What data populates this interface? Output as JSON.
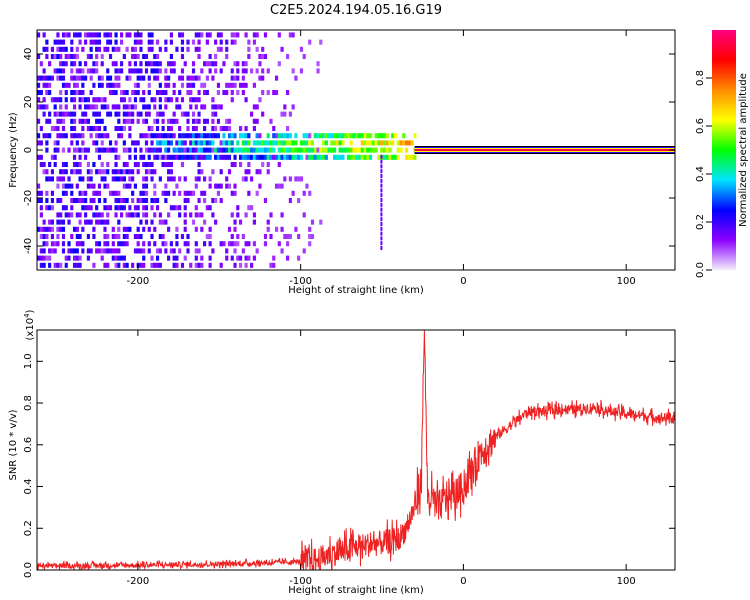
{
  "title": "C2E5.2024.194.05.16.G19",
  "chart_data": [
    {
      "type": "heatmap",
      "name": "spectrogram",
      "xlabel": "Height of straight line (km)",
      "ylabel": "Frequency (Hz)",
      "xlim": [
        -262,
        130
      ],
      "ylim": [
        -50,
        50
      ],
      "x_ticks": [
        -200,
        -100,
        0,
        100
      ],
      "y_ticks": [
        -40,
        -20,
        0,
        20,
        40
      ],
      "colorbar": {
        "label": "Normalized spectral amplitude",
        "range": [
          0,
          1
        ],
        "ticks": [
          0.0,
          0.2,
          0.4,
          0.6,
          0.8
        ],
        "colors": [
          "#f4eefc",
          "#8c00ff",
          "#0000ff",
          "#00e5ff",
          "#00ff00",
          "#ffff00",
          "#ff8c00",
          "#ff0000",
          "#ff0080"
        ]
      },
      "features": {
        "noise_region_km": [
          -262,
          -90
        ],
        "signal_band_km": [
          -195,
          -30
        ],
        "signal_freq_hz": 0,
        "tone_start_km": -30,
        "tone_end_km": 130
      }
    },
    {
      "type": "line",
      "name": "snr",
      "xlabel": "Height of straight line (km)",
      "ylabel": "SNR (10 * v/v)",
      "multiplier": "(x10",
      "multiplier_exp": "4",
      "multiplier_close": ")",
      "xlim": [
        -262,
        130
      ],
      "ylim": [
        0,
        1.15
      ],
      "x_ticks": [
        -200,
        -100,
        0,
        100
      ],
      "y_ticks": [
        0.0,
        0.2,
        0.4,
        0.6,
        0.8,
        1.0
      ],
      "color": "#ee2222",
      "series": [
        {
          "x": [
            -262,
            -240,
            -220,
            -200,
            -180,
            -160,
            -140,
            -120,
            -100,
            -90,
            -80,
            -70,
            -60,
            -50,
            -40,
            -35,
            -30,
            -26,
            -24,
            -22,
            -20,
            -15,
            -10,
            -5,
            0,
            5,
            10,
            20,
            30,
            40,
            50,
            60,
            70,
            80,
            90,
            100,
            110,
            120,
            130
          ],
          "y": [
            0.02,
            0.02,
            0.022,
            0.023,
            0.025,
            0.028,
            0.03,
            0.035,
            0.04,
            0.05,
            0.08,
            0.1,
            0.12,
            0.13,
            0.15,
            0.2,
            0.3,
            0.42,
            1.15,
            0.35,
            0.34,
            0.3,
            0.36,
            0.36,
            0.4,
            0.47,
            0.56,
            0.64,
            0.7,
            0.76,
            0.76,
            0.77,
            0.77,
            0.78,
            0.76,
            0.75,
            0.74,
            0.73,
            0.73
          ]
        }
      ]
    }
  ]
}
